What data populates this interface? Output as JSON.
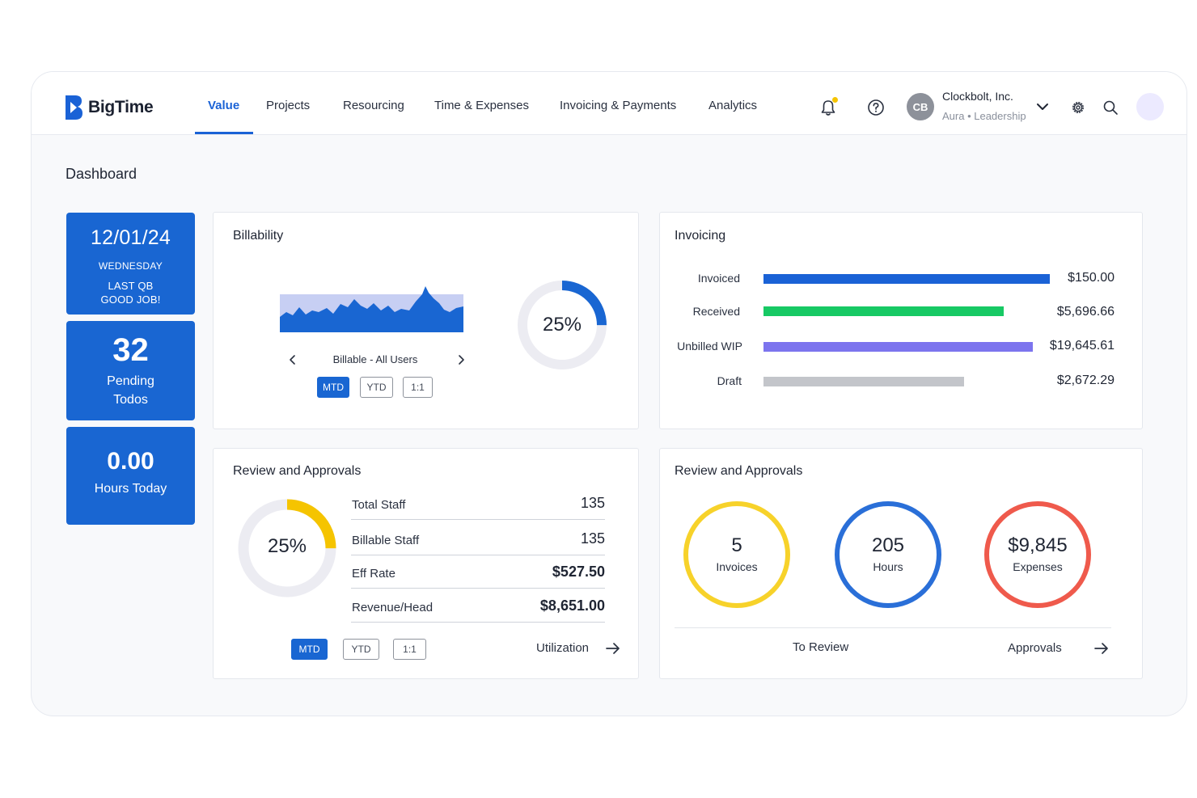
{
  "app": {
    "name": "BigTime"
  },
  "nav": {
    "items": [
      {
        "label": "Value",
        "active": true
      },
      {
        "label": "Projects",
        "active": false
      },
      {
        "label": "Resourcing",
        "active": false
      },
      {
        "label": "Time & Expenses",
        "active": false
      },
      {
        "label": "Invoicing & Payments",
        "active": false
      },
      {
        "label": "Analytics",
        "active": false
      }
    ]
  },
  "header": {
    "avatar_initials": "CB",
    "org_name": "Clockbolt, Inc.",
    "org_role": "Aura • Leadership",
    "icons": [
      "bell-icon",
      "help-icon",
      "chevron-down-icon",
      "gear-icon",
      "search-icon"
    ],
    "notification_color": "#f5c400"
  },
  "page": {
    "title": "Dashboard"
  },
  "tiles": {
    "date": "12/01/24",
    "day": "WEDNESDAY",
    "message_line1": "LAST QB",
    "message_line2": "GOOD JOB!",
    "todos_count": "32",
    "todos_line1": "Pending",
    "todos_line2": "Todos",
    "hours_value": "0.00",
    "hours_label": "Hours Today",
    "color": "#1966d2"
  },
  "billability": {
    "title": "Billability",
    "selector_label": "Billable - All Users",
    "percent_label": "25%",
    "percent_value": 25,
    "periods": [
      {
        "label": "MTD",
        "active": true
      },
      {
        "label": "YTD",
        "active": false
      },
      {
        "label": "1:1",
        "active": false
      }
    ]
  },
  "invoicing": {
    "title": "Invoicing",
    "rows": [
      {
        "label": "Invoiced",
        "value": "$150.00",
        "bar_fraction": 1.0,
        "color": "#1a62d6"
      },
      {
        "label": "Received",
        "value": "$5,696.66",
        "bar_fraction": 0.84,
        "color": "#17c964"
      },
      {
        "label": "Unbilled WIP",
        "value": "$19,645.61",
        "bar_fraction": 0.94,
        "color": "#7c74ee"
      },
      {
        "label": "Draft",
        "value": "$2,672.29",
        "bar_fraction": 0.7,
        "color": "#c3c5ca"
      }
    ]
  },
  "review_staff": {
    "title": "Review and Approvals",
    "percent_label": "25%",
    "percent_value": 25,
    "accent": "#f5c400",
    "metrics": [
      {
        "label": "Total Staff",
        "value": "135"
      },
      {
        "label": "Billable Staff",
        "value": "135"
      },
      {
        "label": "Eff Rate",
        "value": "$527.50"
      },
      {
        "label": "Revenue/Head",
        "value": "$8,651.00"
      }
    ],
    "periods": [
      {
        "label": "MTD",
        "active": true
      },
      {
        "label": "YTD",
        "active": false
      },
      {
        "label": "1:1",
        "active": false
      }
    ],
    "link_label": "Utilization"
  },
  "review_items": {
    "title": "Review and Approvals",
    "rings": [
      {
        "value": "5",
        "caption": "Invoices",
        "color": "#f7d22a"
      },
      {
        "value": "205",
        "caption": "Hours",
        "color": "#2a6fd8"
      },
      {
        "value": "$9,845",
        "caption": "Expenses",
        "color": "#ef5a4c"
      }
    ],
    "to_review_label": "To Review",
    "approvals_label": "Approvals"
  }
}
